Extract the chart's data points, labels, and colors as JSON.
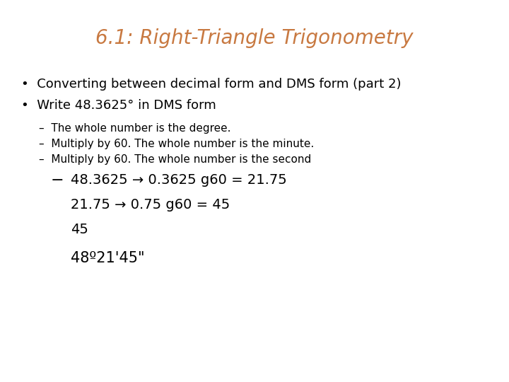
{
  "title": "6.1: Right-Triangle Trigonometry",
  "title_color": "#C87941",
  "background_color": "#FFFFFF",
  "bullet1": "Converting between decimal form and DMS form (part 2)",
  "bullet2": "Write 48.3625° in DMS form",
  "dash1": "The whole number is the degree.",
  "dash2": "Multiply by 60. The whole number is the minute.",
  "dash3": "Multiply by 60. The whole number is the second",
  "math_line1": "48.3625 → 0.3625 g60 = 21.75",
  "math_line2": "21.75 → 0.75 g60 = 45",
  "math_line3": "45",
  "math_line4": "48º21'45\"",
  "title_fontsize": 20,
  "bullet_fontsize": 13,
  "dash_fontsize": 11,
  "math_fontsize": 14
}
